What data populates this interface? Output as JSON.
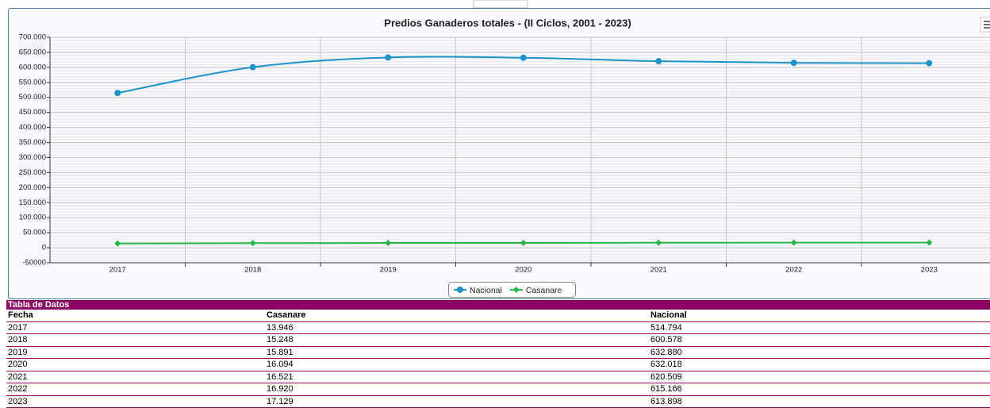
{
  "chart_data": {
    "type": "line",
    "title": "Predios Ganaderos totales - (II Ciclos, 2001 - 2023)",
    "categories": [
      "2017",
      "2018",
      "2019",
      "2020",
      "2021",
      "2022",
      "2023"
    ],
    "series": [
      {
        "name": "Nacional",
        "color": "#1d93c9",
        "values": [
          514794,
          600578,
          632880,
          632018,
          620509,
          615166,
          613898
        ]
      },
      {
        "name": "Casanare",
        "color": "#27b547",
        "values": [
          13946,
          15248,
          15891,
          16094,
          16521,
          16920,
          17129
        ]
      }
    ],
    "ylim": [
      -50000,
      700000
    ],
    "yticks": [
      -50000,
      0,
      {
        "value": 50000,
        "label": "50.000"
      },
      {
        "value": 100000,
        "label": "100.000"
      },
      {
        "value": 150000,
        "label": "150.000"
      },
      {
        "value": 200000,
        "label": "200.000"
      },
      {
        "value": 250000,
        "label": "250.000"
      },
      {
        "value": 300000,
        "label": "300.000"
      },
      {
        "value": 350000,
        "label": "350.000"
      },
      {
        "value": 400000,
        "label": "400.000"
      },
      {
        "value": 450000,
        "label": "450.000"
      },
      {
        "value": 500000,
        "label": "500.000"
      },
      {
        "value": 550000,
        "label": "550.000"
      },
      {
        "value": 600000,
        "label": "600.000"
      },
      {
        "value": 650000,
        "label": "650.000"
      },
      {
        "value": 700000,
        "label": "700.000"
      }
    ],
    "grid": true,
    "legend": "bottom"
  },
  "table": {
    "title": "Tabla de Datos",
    "header": [
      "Fecha",
      "Casanare",
      "Nacional"
    ],
    "rows": [
      [
        "2017",
        "13.946",
        "514.794"
      ],
      [
        "2018",
        "15.248",
        "600.578"
      ],
      [
        "2019",
        "15.891",
        "632.880"
      ],
      [
        "2020",
        "16.094",
        "632.018"
      ],
      [
        "2021",
        "16.521",
        "620.509"
      ],
      [
        "2022",
        "16.920",
        "615.166"
      ],
      [
        "2023",
        "17.129",
        "613.898"
      ]
    ]
  }
}
